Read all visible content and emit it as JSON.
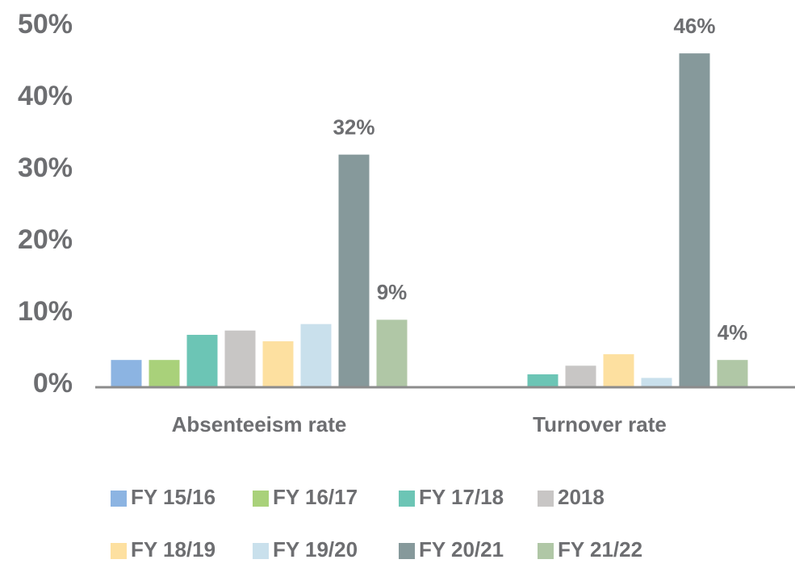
{
  "chart_data": {
    "type": "bar",
    "categories": [
      "Absenteeism rate",
      "Turnover rate"
    ],
    "series": [
      {
        "name": "FY 15/16",
        "color": "#8cb4e2",
        "values": [
          3.8,
          null
        ]
      },
      {
        "name": "FY 16/17",
        "color": "#a9d17a",
        "values": [
          3.8,
          null
        ]
      },
      {
        "name": "FY 17/18",
        "color": "#6cc5b5",
        "values": [
          7.3,
          1.8
        ]
      },
      {
        "name": "2018",
        "color": "#c8c6c5",
        "values": [
          7.9,
          3.0
        ]
      },
      {
        "name": "FY 18/19",
        "color": "#fde0a0",
        "values": [
          6.4,
          4.6
        ]
      },
      {
        "name": "FY 19/20",
        "color": "#c9e0ec",
        "values": [
          8.8,
          1.3
        ]
      },
      {
        "name": "FY 20/21",
        "color": "#86999b",
        "values": [
          32.4,
          46.5
        ],
        "value_labels": [
          "32%",
          "46%"
        ]
      },
      {
        "name": "FY 21/22",
        "color": "#b0c7a6",
        "values": [
          9.4,
          3.8
        ],
        "value_labels": [
          "9%",
          "4%"
        ]
      }
    ],
    "ylim": [
      0,
      50
    ],
    "yticks": [
      {
        "value": 0,
        "label": "0%"
      },
      {
        "value": 10,
        "label": "10%"
      },
      {
        "value": 20,
        "label": "20%"
      },
      {
        "value": 30,
        "label": "30%"
      },
      {
        "value": 40,
        "label": "40%"
      },
      {
        "value": 50,
        "label": "50%"
      }
    ],
    "grid": false,
    "legend": "bottom"
  }
}
